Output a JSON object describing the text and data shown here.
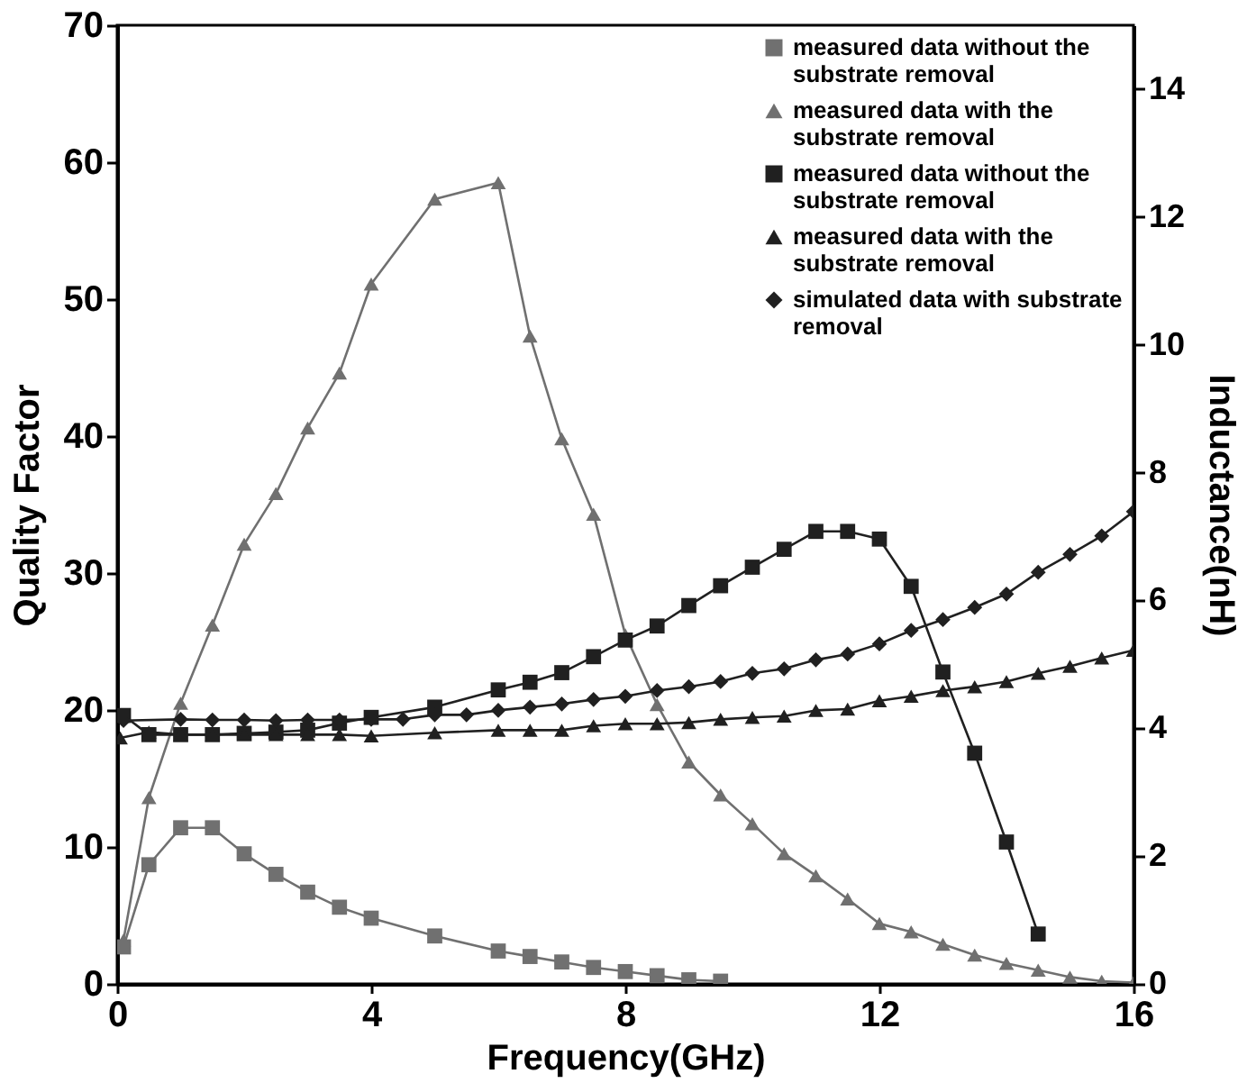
{
  "chart_data": {
    "type": "line",
    "xlabel": "Frequency(GHz)",
    "ylabel": "Quality Factor",
    "y2label": "Inductance(nH)",
    "xlim": [
      0,
      16
    ],
    "xticks": [
      0,
      4,
      8,
      12,
      16
    ],
    "ylim": [
      0,
      70
    ],
    "yticks": [
      0,
      10,
      20,
      30,
      40,
      50,
      60,
      70
    ],
    "y2lim": [
      0,
      15
    ],
    "y2ticks": [
      0,
      2,
      4,
      6,
      8,
      10,
      12,
      14
    ],
    "grid": false,
    "legend": "top right",
    "line_style": "solid",
    "series": [
      {
        "name": "measured data without the substrate removal",
        "color": "#707070",
        "marker": "square",
        "x": [
          0.1,
          0.5,
          1.0,
          1.5,
          2.0,
          2.5,
          3.0,
          3.5,
          4.0,
          5.0,
          6.0,
          6.5,
          7.0,
          7.5,
          8.0,
          8.5,
          9.0,
          9.5
        ],
        "values": [
          2.7,
          8.7,
          11.4,
          11.4,
          9.5,
          8.0,
          6.7,
          5.6,
          4.8,
          3.5,
          2.4,
          2.0,
          1.6,
          1.2,
          0.9,
          0.6,
          0.3,
          0.2
        ]
      },
      {
        "name": "measured data with the substrate removal",
        "color": "#707070",
        "marker": "triangle",
        "x": [
          0.1,
          0.5,
          1.0,
          1.5,
          2.0,
          2.5,
          3.0,
          3.5,
          4.0,
          5.0,
          6.0,
          6.5,
          7.0,
          7.5,
          8.0,
          8.5,
          9.0,
          9.5,
          10.0,
          10.5,
          11.0,
          11.5,
          12.0,
          12.5,
          13.0,
          13.5,
          14.0,
          14.5,
          15.0,
          15.5,
          16.0
        ],
        "values": [
          3.2,
          13.6,
          20.5,
          26.2,
          32.1,
          35.8,
          40.6,
          44.6,
          51.1,
          57.3,
          58.5,
          47.3,
          39.8,
          34.3,
          25.5,
          20.4,
          16.2,
          13.8,
          11.7,
          9.5,
          7.9,
          6.2,
          4.4,
          3.8,
          2.9,
          2.1,
          1.5,
          1.0,
          0.5,
          0.2,
          0.1
        ]
      },
      {
        "name": "measured data without the substrate removal",
        "color": "#202020",
        "marker": "square",
        "axis": "y2",
        "x": [
          0.1,
          0.5,
          1.0,
          1.5,
          2.0,
          2.5,
          3.0,
          3.5,
          4.0,
          5.0,
          6.0,
          6.5,
          7.0,
          7.5,
          8.0,
          8.5,
          9.0,
          9.5,
          10.0,
          10.5,
          11.0,
          11.5,
          12.0,
          12.5,
          13.0,
          13.5,
          14.0,
          14.5
        ],
        "values": [
          4.2,
          3.9,
          3.9,
          3.9,
          3.92,
          3.94,
          3.97,
          4.08,
          4.17,
          4.33,
          4.6,
          4.72,
          4.87,
          5.12,
          5.38,
          5.6,
          5.92,
          6.23,
          6.52,
          6.8,
          7.08,
          7.08,
          6.96,
          6.22,
          4.88,
          3.61,
          2.22,
          0.78
        ]
      },
      {
        "name": "measured data with the substrate removal",
        "color": "#202020",
        "marker": "triangle",
        "axis": "y2",
        "x": [
          0.05,
          0.5,
          1.0,
          1.5,
          2.0,
          2.5,
          3.0,
          3.5,
          4.0,
          5.0,
          6.0,
          6.5,
          7.0,
          7.5,
          8.0,
          8.5,
          9.0,
          9.5,
          10.0,
          10.5,
          11.0,
          11.5,
          12.0,
          12.5,
          13.0,
          13.5,
          14.0,
          14.5,
          15.0,
          15.5,
          16.0
        ],
        "values": [
          3.85,
          3.94,
          3.9,
          3.9,
          3.9,
          3.9,
          3.9,
          3.9,
          3.88,
          3.93,
          3.97,
          3.97,
          3.97,
          4.04,
          4.07,
          4.07,
          4.09,
          4.14,
          4.17,
          4.19,
          4.28,
          4.3,
          4.43,
          4.5,
          4.59,
          4.65,
          4.73,
          4.86,
          4.97,
          5.1,
          5.22
        ]
      },
      {
        "name": "simulated data with substrate removal",
        "color": "#202020",
        "marker": "diamond",
        "axis": "y2",
        "x": [
          0.1,
          1.0,
          1.5,
          2.0,
          2.5,
          3.0,
          3.5,
          4.0,
          4.5,
          5.0,
          5.5,
          6.0,
          6.5,
          7.0,
          7.5,
          8.0,
          8.5,
          9.0,
          9.5,
          10.0,
          10.5,
          11.0,
          11.5,
          12.0,
          12.5,
          13.0,
          13.5,
          14.0,
          14.5,
          15.0,
          15.5,
          16.0
        ],
        "values": [
          4.12,
          4.14,
          4.13,
          4.13,
          4.12,
          4.13,
          4.13,
          4.14,
          4.14,
          4.21,
          4.21,
          4.28,
          4.33,
          4.38,
          4.45,
          4.5,
          4.59,
          4.65,
          4.73,
          4.86,
          4.93,
          5.07,
          5.16,
          5.32,
          5.53,
          5.7,
          5.89,
          6.1,
          6.44,
          6.72,
          7.01,
          7.39
        ]
      }
    ]
  }
}
